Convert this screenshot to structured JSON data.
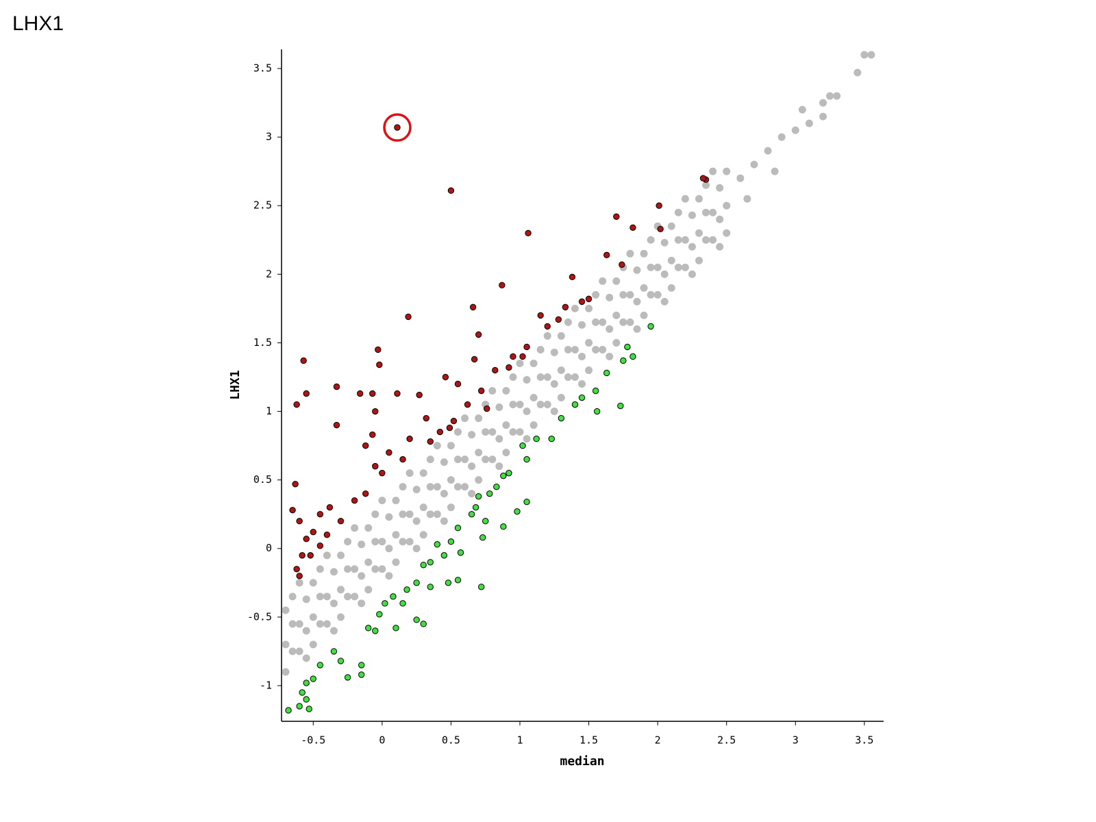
{
  "page_title": "LHX1",
  "chart_data": {
    "type": "scatter",
    "xlabel": "median",
    "ylabel": "LHX1",
    "xlim": [
      -0.73,
      3.64
    ],
    "ylim": [
      -1.26,
      3.64
    ],
    "xticks": [
      -0.5,
      0,
      0.5,
      1,
      1.5,
      2,
      2.5,
      3,
      3.5
    ],
    "yticks": [
      -1,
      -0.5,
      0,
      0.5,
      1,
      1.5,
      2,
      2.5,
      3,
      3.5
    ],
    "series": [
      {
        "color": "#bbbbbb",
        "outline": false,
        "x": [
          -0.7,
          -0.7,
          -0.7,
          -0.65,
          -0.65,
          -0.65,
          -0.6,
          -0.6,
          -0.6,
          -0.55,
          -0.55,
          -0.55,
          -0.5,
          -0.5,
          -0.5,
          -0.45,
          -0.45,
          -0.45,
          -0.4,
          -0.4,
          -0.4,
          -0.35,
          -0.35,
          -0.35,
          -0.3,
          -0.3,
          -0.3,
          -0.25,
          -0.25,
          -0.25,
          -0.2,
          -0.2,
          -0.2,
          -0.15,
          -0.15,
          -0.15,
          -0.1,
          -0.1,
          -0.1,
          -0.05,
          -0.05,
          -0.05,
          0,
          0,
          0,
          0.05,
          0.05,
          0.05,
          0.1,
          0.1,
          0.1,
          0.15,
          0.15,
          0.15,
          0.2,
          0.2,
          0.2,
          0.25,
          0.25,
          0.25,
          0.3,
          0.3,
          0.3,
          0.35,
          0.35,
          0.35,
          0.4,
          0.4,
          0.4,
          0.45,
          0.45,
          0.45,
          0.5,
          0.5,
          0.5,
          0.55,
          0.55,
          0.55,
          0.6,
          0.6,
          0.6,
          0.65,
          0.65,
          0.65,
          0.7,
          0.7,
          0.7,
          0.75,
          0.75,
          0.75,
          0.8,
          0.8,
          0.8,
          0.85,
          0.85,
          0.85,
          0.9,
          0.9,
          0.9,
          0.95,
          0.95,
          0.95,
          1,
          1,
          1,
          1.05,
          1.05,
          1.05,
          1.1,
          1.1,
          1.1,
          1.15,
          1.15,
          1.15,
          1.2,
          1.2,
          1.2,
          1.25,
          1.25,
          1.25,
          1.3,
          1.3,
          1.3,
          1.35,
          1.35,
          1.35,
          1.4,
          1.4,
          1.4,
          1.45,
          1.45,
          1.45,
          1.5,
          1.5,
          1.5,
          1.55,
          1.55,
          1.55,
          1.6,
          1.6,
          1.6,
          1.65,
          1.65,
          1.65,
          1.7,
          1.7,
          1.7,
          1.75,
          1.75,
          1.75,
          1.8,
          1.8,
          1.8,
          1.85,
          1.85,
          1.85,
          1.9,
          1.9,
          1.9,
          1.95,
          1.95,
          1.95,
          2,
          2,
          2,
          2.05,
          2.05,
          2.05,
          2.1,
          2.1,
          2.1,
          2.15,
          2.15,
          2.15,
          2.2,
          2.2,
          2.2,
          2.25,
          2.25,
          2.25,
          2.3,
          2.3,
          2.3,
          2.35,
          2.35,
          2.35,
          2.4,
          2.4,
          2.4,
          2.45,
          2.45,
          2.45,
          2.5,
          2.5,
          2.5,
          2.6,
          2.7,
          2.8,
          2.9,
          3.0,
          3.1,
          3.2,
          3.3,
          3.45,
          3.55,
          3.5,
          2.65,
          2.85,
          3.05,
          3.2,
          3.25
        ],
        "values": [
          -0.45,
          -0.7,
          -0.9,
          -0.55,
          -0.75,
          -0.35,
          -0.25,
          -0.55,
          -0.75,
          -0.37,
          -0.6,
          -0.8,
          -0.25,
          -0.5,
          -0.7,
          -0.35,
          -0.55,
          -0.15,
          -0.05,
          -0.35,
          -0.55,
          -0.17,
          -0.4,
          -0.6,
          -0.05,
          -0.3,
          -0.5,
          -0.15,
          -0.35,
          0.05,
          0.15,
          -0.15,
          -0.35,
          0.03,
          -0.2,
          -0.4,
          0.15,
          -0.1,
          -0.3,
          0.05,
          -0.15,
          0.25,
          0.35,
          0.05,
          -0.15,
          0.23,
          0,
          -0.2,
          0.35,
          0.1,
          -0.1,
          0.25,
          0.05,
          0.45,
          0.55,
          0.25,
          0.05,
          0.43,
          0.2,
          0,
          0.55,
          0.3,
          0.1,
          0.45,
          0.25,
          0.65,
          0.75,
          0.45,
          0.25,
          0.63,
          0.4,
          0.2,
          0.75,
          0.5,
          0.3,
          0.65,
          0.45,
          0.85,
          0.95,
          0.65,
          0.45,
          0.83,
          0.6,
          0.4,
          0.95,
          0.7,
          0.5,
          0.85,
          0.65,
          1.05,
          1.15,
          0.85,
          0.65,
          1.03,
          0.8,
          0.6,
          1.15,
          0.9,
          0.7,
          1.05,
          0.85,
          1.25,
          1.35,
          1.05,
          0.85,
          1.23,
          1,
          0.8,
          1.35,
          1.1,
          0.9,
          1.25,
          1.05,
          1.45,
          1.55,
          1.25,
          1.05,
          1.43,
          1.2,
          1,
          1.55,
          1.3,
          1.1,
          1.45,
          1.25,
          1.65,
          1.75,
          1.45,
          1.25,
          1.63,
          1.4,
          1.2,
          1.75,
          1.5,
          1.3,
          1.65,
          1.45,
          1.85,
          1.95,
          1.65,
          1.45,
          1.83,
          1.6,
          1.4,
          1.95,
          1.7,
          1.5,
          1.85,
          1.65,
          2.05,
          2.15,
          1.85,
          1.65,
          2.03,
          1.8,
          1.6,
          2.15,
          1.9,
          1.7,
          2.05,
          1.85,
          2.25,
          2.35,
          2.05,
          1.85,
          2.23,
          2,
          1.8,
          2.35,
          2.1,
          1.9,
          2.25,
          2.05,
          2.45,
          2.55,
          2.25,
          2.05,
          2.43,
          2.2,
          2,
          2.55,
          2.3,
          2.1,
          2.45,
          2.25,
          2.65,
          2.75,
          2.45,
          2.25,
          2.63,
          2.4,
          2.2,
          2.75,
          2.5,
          2.3,
          2.7,
          2.8,
          2.9,
          3.0,
          3.05,
          3.1,
          3.25,
          3.3,
          3.47,
          3.6,
          3.6,
          2.55,
          2.75,
          3.2,
          3.15,
          3.3
        ]
      },
      {
        "color": "#b01515",
        "outline": true,
        "x": [
          0.11,
          0.5,
          1.06,
          0.19,
          -0.57,
          -0.03,
          -0.02,
          -0.62,
          -0.55,
          -0.33,
          -0.33,
          -0.16,
          -0.07,
          -0.05,
          0.11,
          0.27,
          0.46,
          0.55,
          0.52,
          0.49,
          0.32,
          0.35,
          0.62,
          0.67,
          0.72,
          0.87,
          0.66,
          0.7,
          0.92,
          0.95,
          1.02,
          1.15,
          1.2,
          1.38,
          1.45,
          1.5,
          1.63,
          1.74,
          1.7,
          1.82,
          2.01,
          2.02,
          2.35,
          2.33,
          1.33,
          1.28,
          1.05,
          -0.63,
          -0.65,
          -0.6,
          -0.55,
          -0.62,
          -0.58,
          -0.5,
          -0.45,
          -0.38,
          -0.3,
          -0.2,
          -0.12,
          -0.05,
          0,
          -0.12,
          -0.07,
          0.05,
          0.15,
          0.2,
          -0.6,
          -0.52,
          -0.45,
          -0.4,
          0.42,
          0.82,
          0.76
        ],
        "values": [
          3.07,
          2.61,
          2.3,
          1.69,
          1.37,
          1.45,
          1.34,
          1.05,
          1.13,
          1.18,
          0.9,
          1.13,
          1.13,
          1,
          1.13,
          1.12,
          1.25,
          1.2,
          0.93,
          0.88,
          0.95,
          0.78,
          1.05,
          1.38,
          1.15,
          1.92,
          1.76,
          1.56,
          1.32,
          1.4,
          1.4,
          1.7,
          1.62,
          1.98,
          1.8,
          1.82,
          2.14,
          2.07,
          2.42,
          2.34,
          2.5,
          2.33,
          2.69,
          2.7,
          1.76,
          1.67,
          1.47,
          0.47,
          0.28,
          0.2,
          0.07,
          -0.15,
          -0.05,
          0.12,
          0.25,
          0.3,
          0.2,
          0.35,
          0.4,
          0.6,
          0.55,
          0.75,
          0.83,
          0.7,
          0.65,
          0.8,
          -0.2,
          -0.05,
          0.02,
          0.1,
          0.85,
          1.3,
          1.02
        ]
      },
      {
        "color": "#44dd44",
        "outline": true,
        "x": [
          1.95,
          1.78,
          1.82,
          1.75,
          1.63,
          1.73,
          1.56,
          1.55,
          1.45,
          1.4,
          1.3,
          1.23,
          1.12,
          1.05,
          1.02,
          0.92,
          0.88,
          0.83,
          0.78,
          0.7,
          0.68,
          0.65,
          0.75,
          1.05,
          0.98,
          0.88,
          0.73,
          0.55,
          0.5,
          0.57,
          0.45,
          0.4,
          0.35,
          0.3,
          0.72,
          0.55,
          0.48,
          0.35,
          0.25,
          0.18,
          0.15,
          0.08,
          0.02,
          -0.02,
          0.25,
          0.1,
          -0.05,
          -0.1,
          -0.15,
          -0.15,
          -0.25,
          -0.3,
          -0.35,
          -0.45,
          -0.5,
          -0.55,
          -0.58,
          -0.55,
          -0.6,
          -0.68,
          -0.53,
          0.3
        ],
        "values": [
          1.62,
          1.47,
          1.4,
          1.37,
          1.28,
          1.04,
          1,
          1.15,
          1.1,
          1.05,
          0.95,
          0.8,
          0.8,
          0.65,
          0.75,
          0.55,
          0.53,
          0.45,
          0.4,
          0.38,
          0.3,
          0.25,
          0.2,
          0.34,
          0.27,
          0.16,
          0.08,
          0.15,
          0.05,
          -0.03,
          -0.05,
          0.03,
          -0.1,
          -0.12,
          -0.28,
          -0.23,
          -0.25,
          -0.28,
          -0.25,
          -0.3,
          -0.4,
          -0.35,
          -0.4,
          -0.48,
          -0.52,
          -0.58,
          -0.6,
          -0.58,
          -0.85,
          -0.92,
          -0.94,
          -0.82,
          -0.75,
          -0.85,
          -0.95,
          -0.98,
          -1.05,
          -1.1,
          -1.15,
          -1.18,
          -1.17,
          -0.55
        ]
      }
    ]
  }
}
